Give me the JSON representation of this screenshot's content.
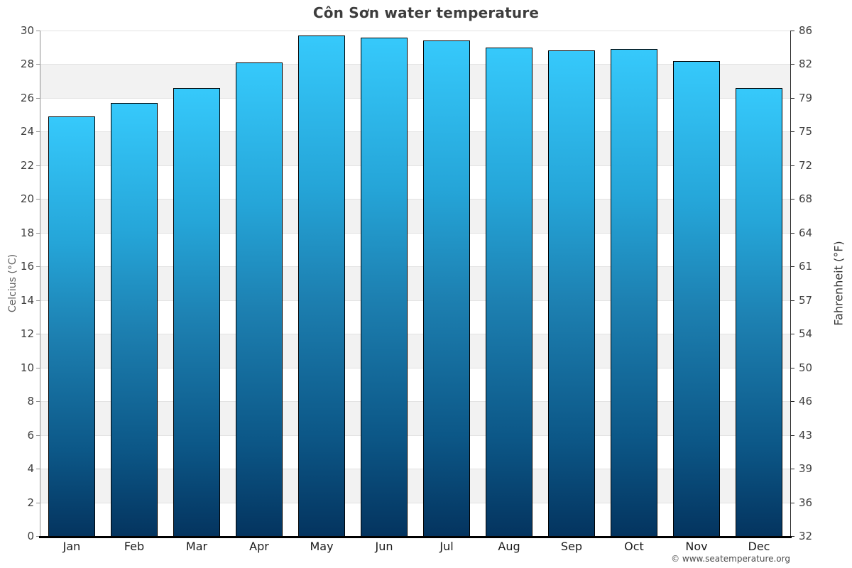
{
  "title": "Côn Sơn water temperature",
  "copyright": "© www.seatemperature.org",
  "y_axis_left": {
    "label": "Celcius (°C)"
  },
  "y_axis_right": {
    "label": "Fahrenheit (°F)"
  },
  "chart_data": {
    "type": "bar",
    "title": "Côn Sơn water temperature",
    "categories": [
      "Jan",
      "Feb",
      "Mar",
      "Apr",
      "May",
      "Jun",
      "Jul",
      "Aug",
      "Sep",
      "Oct",
      "Nov",
      "Dec"
    ],
    "values": [
      24.9,
      25.7,
      26.6,
      28.1,
      29.7,
      29.6,
      29.4,
      29.0,
      28.8,
      28.9,
      28.2,
      26.6
    ],
    "unit": "°C",
    "xlabel": "",
    "ylabel": "Celcius (°C)",
    "ylabel_right": "Fahrenheit (°F)",
    "ylim": [
      0,
      30
    ],
    "celsius_ticks": [
      0,
      2,
      4,
      6,
      8,
      10,
      12,
      14,
      16,
      18,
      20,
      22,
      24,
      26,
      28,
      30
    ],
    "fahrenheit_ticks": [
      32,
      36,
      39,
      43,
      46,
      50,
      54,
      57,
      61,
      64,
      68,
      72,
      75,
      79,
      82,
      86
    ],
    "grid": "alternating-horizontal-bands",
    "legend_position": "none",
    "colors": {
      "bar_gradient_top": "#36c9fb",
      "bar_gradient_mid": "#1d80b1",
      "bar_gradient_bottom": "#04345f",
      "bar_border": "#000000",
      "band_gray": "#f2f2f2",
      "band_white": "#ffffff",
      "gridline": "#e3e3e3",
      "title_text": "#3d3d3d",
      "tick_text": "#3f3f3f"
    }
  }
}
